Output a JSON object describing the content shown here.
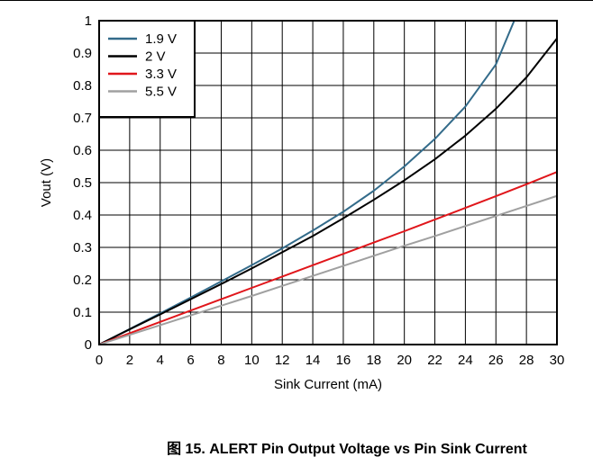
{
  "caption": "图 15. ALERT Pin Output Voltage vs Pin Sink Current",
  "chart_data": {
    "type": "line",
    "xlabel": "Sink Current (mA)",
    "ylabel": "Vout (V)",
    "xlim": [
      0,
      30
    ],
    "ylim": [
      0,
      1
    ],
    "xticks": [
      0,
      2,
      4,
      6,
      8,
      10,
      12,
      14,
      16,
      18,
      20,
      22,
      24,
      26,
      28,
      30
    ],
    "yticks": [
      0,
      0.1,
      0.2,
      0.3,
      0.4,
      0.5,
      0.6,
      0.7,
      0.8,
      0.9,
      1
    ],
    "grid": true,
    "legend_position": "top-left",
    "series": [
      {
        "name": "1.9 V",
        "color": "#336b8a",
        "x": [
          0,
          2,
          4,
          6,
          8,
          10,
          12,
          14,
          16,
          18,
          20,
          22,
          24,
          26,
          27.2
        ],
        "y": [
          0,
          0.048,
          0.096,
          0.145,
          0.195,
          0.245,
          0.297,
          0.352,
          0.41,
          0.475,
          0.55,
          0.635,
          0.735,
          0.865,
          1.0
        ]
      },
      {
        "name": "2 V",
        "color": "#000000",
        "x": [
          0,
          2,
          4,
          6,
          8,
          10,
          12,
          14,
          16,
          18,
          20,
          22,
          24,
          26,
          28,
          30
        ],
        "y": [
          0,
          0.047,
          0.093,
          0.14,
          0.187,
          0.235,
          0.285,
          0.335,
          0.39,
          0.447,
          0.507,
          0.572,
          0.645,
          0.728,
          0.825,
          0.945
        ]
      },
      {
        "name": "3.3 V",
        "color": "#e0161b",
        "x": [
          0,
          2,
          4,
          6,
          8,
          10,
          12,
          14,
          16,
          18,
          20,
          22,
          24,
          26,
          28,
          30
        ],
        "y": [
          0,
          0.035,
          0.07,
          0.105,
          0.14,
          0.175,
          0.21,
          0.245,
          0.28,
          0.315,
          0.35,
          0.386,
          0.422,
          0.458,
          0.495,
          0.533
        ]
      },
      {
        "name": "5.5 V",
        "color": "#a0a0a0",
        "x": [
          0,
          2,
          4,
          6,
          8,
          10,
          12,
          14,
          16,
          18,
          20,
          22,
          24,
          26,
          28,
          30
        ],
        "y": [
          0,
          0.03,
          0.06,
          0.09,
          0.12,
          0.15,
          0.181,
          0.212,
          0.243,
          0.274,
          0.305,
          0.335,
          0.366,
          0.397,
          0.428,
          0.459
        ]
      }
    ]
  }
}
